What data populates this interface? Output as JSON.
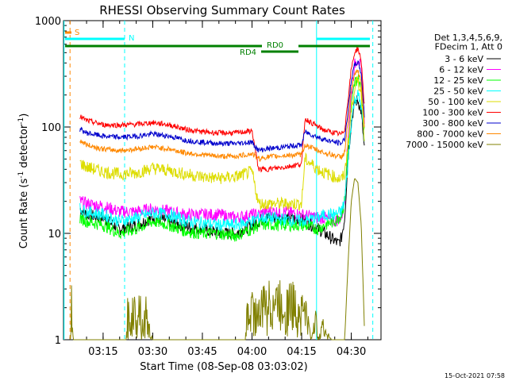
{
  "chart_data": {
    "type": "line",
    "title": "RHESSI Observing Summary Count Rates",
    "xlabel": "Start Time (08-Sep-08 03:03:02)",
    "ylabel_main": "Count Rate (s",
    "ylabel_sup1": "-1",
    "ylabel_mid": " detector",
    "ylabel_sup2": "-1",
    "ylabel_end": ")",
    "yscale": "log",
    "ylim": [
      1,
      1000
    ],
    "xlim_minutes": [
      3.03,
      15.98
    ],
    "y_ticks": [
      {
        "v": 1,
        "label": "1"
      },
      {
        "v": 10,
        "label": "10"
      },
      {
        "v": 100,
        "label": "100"
      },
      {
        "v": 1000,
        "label": "1000"
      }
    ],
    "x_ticks": [
      {
        "v": 15,
        "label": "03:15"
      },
      {
        "v": 30,
        "label": "03:30"
      },
      {
        "v": 45,
        "label": "03:45"
      },
      {
        "v": 60,
        "label": "04:00"
      },
      {
        "v": 75,
        "label": "04:15"
      },
      {
        "v": 90,
        "label": "04:30"
      }
    ],
    "legend_header": [
      "Det 1,3,4,5,6,9,",
      "FDecim 1, Att 0"
    ],
    "series": [
      {
        "name": "3 - 6 keV",
        "color": "#000000",
        "points": [
          [
            8,
            17
          ],
          [
            10,
            15
          ],
          [
            15,
            14
          ],
          [
            20,
            11
          ],
          [
            25,
            12
          ],
          [
            30,
            14
          ],
          [
            35,
            13
          ],
          [
            40,
            11.5
          ],
          [
            45,
            11
          ],
          [
            50,
            10
          ],
          [
            55,
            10
          ],
          [
            60,
            12
          ],
          [
            62,
            13
          ],
          [
            64,
            14
          ],
          [
            70,
            14
          ],
          [
            75,
            13.5
          ],
          [
            78,
            12
          ],
          [
            80,
            11
          ],
          [
            82,
            10
          ],
          [
            84,
            9
          ],
          [
            86,
            8
          ],
          [
            87,
            9
          ],
          [
            88,
            14
          ],
          [
            89,
            50
          ],
          [
            90,
            110
          ],
          [
            91,
            170
          ],
          [
            92,
            180
          ],
          [
            93,
            140
          ],
          [
            94,
            60
          ]
        ]
      },
      {
        "name": "6 - 12 keV",
        "color": "#ff00ff",
        "points": [
          [
            8,
            20
          ],
          [
            10,
            19
          ],
          [
            15,
            18
          ],
          [
            20,
            16
          ],
          [
            25,
            16
          ],
          [
            30,
            17
          ],
          [
            35,
            16
          ],
          [
            40,
            15
          ],
          [
            45,
            15
          ],
          [
            50,
            15
          ],
          [
            55,
            14
          ],
          [
            60,
            15
          ],
          [
            62,
            15
          ],
          [
            64,
            16
          ],
          [
            70,
            16
          ],
          [
            75,
            15
          ],
          [
            80,
            14
          ],
          [
            82,
            14
          ],
          [
            85,
            13
          ],
          [
            87,
            14
          ],
          [
            88,
            20
          ],
          [
            89,
            80
          ],
          [
            90,
            200
          ],
          [
            91,
            380
          ],
          [
            92,
            450
          ],
          [
            93,
            350
          ],
          [
            94,
            110
          ]
        ]
      },
      {
        "name": "12 - 25 keV",
        "color": "#00ff00",
        "points": [
          [
            8,
            14
          ],
          [
            10,
            13
          ],
          [
            15,
            12
          ],
          [
            20,
            10
          ],
          [
            25,
            11
          ],
          [
            30,
            13
          ],
          [
            35,
            12
          ],
          [
            40,
            10.5
          ],
          [
            45,
            10
          ],
          [
            50,
            10
          ],
          [
            55,
            9.5
          ],
          [
            60,
            11
          ],
          [
            62,
            12
          ],
          [
            64,
            12
          ],
          [
            70,
            12
          ],
          [
            75,
            12
          ],
          [
            80,
            11
          ],
          [
            82,
            12
          ],
          [
            85,
            13
          ],
          [
            87,
            15
          ],
          [
            88,
            20
          ],
          [
            89,
            60
          ],
          [
            90,
            150
          ],
          [
            91,
            260
          ],
          [
            92,
            290
          ],
          [
            93,
            220
          ],
          [
            94,
            90
          ]
        ]
      },
      {
        "name": "25 - 50 keV",
        "color": "#00ffff",
        "points": [
          [
            8,
            17
          ],
          [
            10,
            16
          ],
          [
            15,
            15
          ],
          [
            20,
            13
          ],
          [
            25,
            14
          ],
          [
            30,
            15.5
          ],
          [
            35,
            15
          ],
          [
            40,
            13
          ],
          [
            45,
            12.5
          ],
          [
            50,
            12
          ],
          [
            55,
            12
          ],
          [
            60,
            13
          ],
          [
            62,
            14
          ],
          [
            64,
            14
          ],
          [
            70,
            13.5
          ],
          [
            75,
            13
          ],
          [
            80,
            14
          ],
          [
            82,
            15
          ],
          [
            85,
            15
          ],
          [
            87,
            16
          ],
          [
            88,
            20
          ],
          [
            89,
            45
          ],
          [
            90,
            110
          ],
          [
            91,
            180
          ],
          [
            92,
            200
          ],
          [
            93,
            160
          ],
          [
            94,
            70
          ]
        ]
      },
      {
        "name": "50 - 100 keV",
        "color": "#dddd00",
        "points": [
          [
            8,
            46
          ],
          [
            10,
            42
          ],
          [
            15,
            38
          ],
          [
            20,
            36
          ],
          [
            25,
            37
          ],
          [
            30,
            41
          ],
          [
            35,
            39
          ],
          [
            40,
            36
          ],
          [
            45,
            34
          ],
          [
            50,
            33
          ],
          [
            55,
            34
          ],
          [
            60,
            38
          ],
          [
            62,
            19
          ],
          [
            64,
            19
          ],
          [
            70,
            19
          ],
          [
            75,
            19
          ],
          [
            76,
            50
          ],
          [
            80,
            40
          ],
          [
            82,
            37
          ],
          [
            85,
            34
          ],
          [
            87,
            32
          ],
          [
            88,
            36
          ],
          [
            89,
            70
          ],
          [
            90,
            140
          ],
          [
            91,
            240
          ],
          [
            92,
            270
          ],
          [
            93,
            210
          ],
          [
            94,
            80
          ]
        ]
      },
      {
        "name": "100 - 300 keV",
        "color": "#ff0000",
        "points": [
          [
            8,
            125
          ],
          [
            10,
            115
          ],
          [
            15,
            105
          ],
          [
            20,
            104
          ],
          [
            25,
            106
          ],
          [
            30,
            110
          ],
          [
            35,
            105
          ],
          [
            40,
            95
          ],
          [
            45,
            90
          ],
          [
            50,
            88
          ],
          [
            55,
            88
          ],
          [
            60,
            92
          ],
          [
            62,
            40
          ],
          [
            64,
            40
          ],
          [
            70,
            42
          ],
          [
            75,
            45
          ],
          [
            76,
            120
          ],
          [
            80,
            100
          ],
          [
            82,
            93
          ],
          [
            85,
            88
          ],
          [
            87,
            85
          ],
          [
            88,
            95
          ],
          [
            89,
            180
          ],
          [
            90,
            350
          ],
          [
            91,
            500
          ],
          [
            92,
            550
          ],
          [
            93,
            420
          ],
          [
            94,
            150
          ]
        ]
      },
      {
        "name": "300 - 800 keV",
        "color": "#0000cc",
        "points": [
          [
            8,
            95
          ],
          [
            10,
            88
          ],
          [
            15,
            82
          ],
          [
            20,
            80
          ],
          [
            25,
            82
          ],
          [
            30,
            86
          ],
          [
            35,
            82
          ],
          [
            40,
            75
          ],
          [
            45,
            72
          ],
          [
            50,
            70
          ],
          [
            55,
            70
          ],
          [
            60,
            72
          ],
          [
            62,
            60
          ],
          [
            64,
            62
          ],
          [
            70,
            65
          ],
          [
            75,
            68
          ],
          [
            76,
            90
          ],
          [
            80,
            80
          ],
          [
            82,
            76
          ],
          [
            85,
            72
          ],
          [
            87,
            70
          ],
          [
            88,
            78
          ],
          [
            89,
            140
          ],
          [
            90,
            280
          ],
          [
            91,
            380
          ],
          [
            92,
            410
          ],
          [
            93,
            320
          ],
          [
            94,
            120
          ]
        ]
      },
      {
        "name": "800 - 7000 keV",
        "color": "#ff8800",
        "points": [
          [
            8,
            75
          ],
          [
            10,
            68
          ],
          [
            15,
            62
          ],
          [
            20,
            60
          ],
          [
            25,
            62
          ],
          [
            30,
            65
          ],
          [
            35,
            62
          ],
          [
            40,
            57
          ],
          [
            45,
            55
          ],
          [
            50,
            53
          ],
          [
            55,
            53
          ],
          [
            60,
            56
          ],
          [
            62,
            50
          ],
          [
            64,
            52
          ],
          [
            70,
            54
          ],
          [
            75,
            55
          ],
          [
            76,
            68
          ],
          [
            80,
            60
          ],
          [
            82,
            57
          ],
          [
            85,
            54
          ],
          [
            87,
            52
          ],
          [
            88,
            58
          ],
          [
            89,
            110
          ],
          [
            90,
            220
          ],
          [
            91,
            310
          ],
          [
            92,
            340
          ],
          [
            93,
            260
          ],
          [
            94,
            100
          ]
        ]
      },
      {
        "name": "7000 - 15000 keV",
        "color": "#808000",
        "points": [
          [
            5,
            1
          ],
          [
            5.5,
            3
          ],
          [
            6,
            1
          ],
          [
            22,
            1
          ],
          [
            22.5,
            2.5
          ],
          [
            23,
            1.4
          ],
          [
            24,
            2.5
          ],
          [
            25,
            2
          ],
          [
            26,
            3
          ],
          [
            27,
            1.4
          ],
          [
            28,
            2.2
          ],
          [
            29,
            1.3
          ],
          [
            30,
            1
          ],
          [
            58,
            1
          ],
          [
            58.5,
            2
          ],
          [
            60,
            2.5
          ],
          [
            62,
            2
          ],
          [
            64,
            3
          ],
          [
            66,
            2.8
          ],
          [
            68,
            3
          ],
          [
            70,
            2.5
          ],
          [
            72,
            3
          ],
          [
            74,
            2.2
          ],
          [
            76,
            2.5
          ],
          [
            77,
            1.5
          ],
          [
            78,
            1
          ],
          [
            79,
            2
          ],
          [
            80,
            1
          ],
          [
            81,
            1.5
          ],
          [
            84,
            1
          ],
          [
            88,
            1
          ],
          [
            89,
            5
          ],
          [
            90,
            20
          ],
          [
            91,
            33
          ],
          [
            92,
            30
          ],
          [
            93,
            12
          ],
          [
            94,
            1.2
          ]
        ]
      }
    ],
    "annotations": {
      "s_label": "S",
      "n_label": "N",
      "rd0_label": "RD0",
      "rd4_label": "RD4"
    },
    "vertical_markers_minutes": {
      "orange_dashed": 5,
      "cyan_solid": [
        3.2,
        79.5
      ],
      "cyan_dashed": [
        21.5,
        96.5
      ]
    }
  },
  "footer_timestamp": "15-Oct-2021 07:58"
}
